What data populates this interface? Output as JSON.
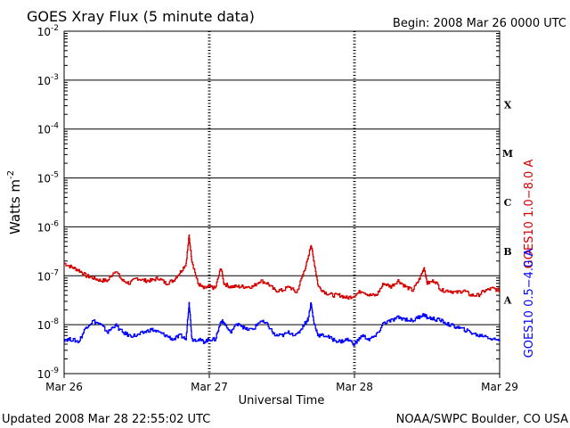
{
  "header": {
    "title": "GOES Xray Flux (5 minute data)",
    "begin_label": "Begin:  2008 Mar 26 0000 UTC"
  },
  "footer": {
    "updated": "Updated 2008 Mar 28 22:55:02 UTC",
    "credit": "NOAA/SWPC Boulder, CO USA"
  },
  "chart_data": {
    "type": "line",
    "title": "GOES Xray Flux (5 minute data)",
    "xlabel": "Universal Time",
    "ylabel_main": "Watts m",
    "ylabel_exp": "-2",
    "y_scale": "log",
    "ylim": [
      1e-09,
      0.01
    ],
    "xlim_days": [
      0,
      3
    ],
    "x_ticks": [
      "Mar 26",
      "Mar 27",
      "Mar 28",
      "Mar 29"
    ],
    "y_ticks": [
      {
        "base": "10",
        "exp": "-2",
        "value": 0.01
      },
      {
        "base": "10",
        "exp": "-3",
        "value": 0.001
      },
      {
        "base": "10",
        "exp": "-4",
        "value": 0.0001
      },
      {
        "base": "10",
        "exp": "-5",
        "value": 1e-05
      },
      {
        "base": "10",
        "exp": "-6",
        "value": 1e-06
      },
      {
        "base": "10",
        "exp": "-7",
        "value": 1e-07
      },
      {
        "base": "10",
        "exp": "-8",
        "value": 1e-08
      },
      {
        "base": "10",
        "exp": "-9",
        "value": 1e-09
      }
    ],
    "flare_classes": [
      {
        "label": "X",
        "value": 0.000316
      },
      {
        "label": "M",
        "value": 3.16e-05
      },
      {
        "label": "C",
        "value": 3.16e-06
      },
      {
        "label": "B",
        "value": 3.16e-07
      },
      {
        "label": "A",
        "value": 3.16e-08
      }
    ],
    "grid": "horizontal lines at each decade, dashed vertical lines at day boundaries",
    "series": [
      {
        "name": "GOES10 1.0−8.0 A",
        "color": "#d40000",
        "x": [
          0.0,
          0.05,
          0.1,
          0.15,
          0.2,
          0.25,
          0.3,
          0.35,
          0.4,
          0.45,
          0.5,
          0.55,
          0.6,
          0.65,
          0.7,
          0.75,
          0.8,
          0.84,
          0.86,
          0.88,
          0.92,
          0.96,
          1.0,
          1.04,
          1.08,
          1.1,
          1.14,
          1.2,
          1.25,
          1.3,
          1.35,
          1.4,
          1.45,
          1.5,
          1.55,
          1.6,
          1.65,
          1.68,
          1.7,
          1.72,
          1.75,
          1.8,
          1.85,
          1.9,
          1.95,
          2.0,
          2.05,
          2.1,
          2.15,
          2.2,
          2.25,
          2.3,
          2.35,
          2.4,
          2.45,
          2.48,
          2.5,
          2.55,
          2.6,
          2.65,
          2.7,
          2.75,
          2.8,
          2.85,
          2.9,
          2.95,
          3.0
        ],
        "y": [
          1.8e-07,
          1.5e-07,
          1.3e-07,
          1e-07,
          9e-08,
          8e-08,
          8e-08,
          1.3e-07,
          8e-08,
          7e-08,
          9e-08,
          8e-08,
          8e-08,
          9e-08,
          7e-08,
          8e-08,
          1.2e-07,
          1.8e-07,
          6.5e-07,
          2e-07,
          7e-08,
          5.5e-08,
          6e-08,
          5.5e-08,
          1.5e-07,
          7e-08,
          6e-08,
          6e-08,
          6e-08,
          6e-08,
          8e-08,
          7e-08,
          5e-08,
          5e-08,
          6e-08,
          4.5e-08,
          1.2e-07,
          2.2e-07,
          4.5e-07,
          2e-07,
          6e-08,
          4.5e-08,
          4e-08,
          4e-08,
          3.5e-08,
          4e-08,
          5e-08,
          4e-08,
          4e-08,
          7e-08,
          6e-08,
          8e-08,
          6e-08,
          5e-08,
          9e-08,
          1.5e-07,
          7e-08,
          8e-08,
          5e-08,
          5e-08,
          4.5e-08,
          5e-08,
          4e-08,
          4e-08,
          5e-08,
          5.5e-08,
          5e-08
        ]
      },
      {
        "name": "GOES10 0.5−4.0 A",
        "color": "#0000ff",
        "x": [
          0.0,
          0.05,
          0.1,
          0.15,
          0.2,
          0.25,
          0.3,
          0.35,
          0.4,
          0.45,
          0.5,
          0.55,
          0.6,
          0.65,
          0.7,
          0.75,
          0.8,
          0.84,
          0.86,
          0.88,
          0.92,
          0.96,
          1.0,
          1.04,
          1.08,
          1.1,
          1.14,
          1.2,
          1.25,
          1.3,
          1.35,
          1.4,
          1.45,
          1.5,
          1.55,
          1.6,
          1.65,
          1.68,
          1.7,
          1.72,
          1.75,
          1.8,
          1.85,
          1.9,
          1.95,
          2.0,
          2.05,
          2.1,
          2.15,
          2.2,
          2.25,
          2.3,
          2.35,
          2.4,
          2.45,
          2.48,
          2.5,
          2.55,
          2.6,
          2.65,
          2.7,
          2.75,
          2.8,
          2.85,
          2.9,
          2.95,
          3.0
        ],
        "y": [
          5e-09,
          5e-09,
          4.5e-09,
          9e-09,
          1.2e-08,
          1e-08,
          7e-09,
          1e-08,
          7e-09,
          6e-09,
          6e-09,
          7e-09,
          8e-09,
          7e-09,
          6e-09,
          5e-09,
          6e-09,
          5e-09,
          3e-08,
          5e-09,
          5e-09,
          4.5e-09,
          5e-09,
          5e-09,
          1.2e-08,
          1.1e-08,
          7e-09,
          1.1e-08,
          8e-09,
          8e-09,
          1.2e-08,
          1e-08,
          6e-09,
          6e-09,
          7e-09,
          6e-09,
          1e-08,
          1.3e-08,
          2.8e-08,
          1.1e-08,
          6e-09,
          6e-09,
          5e-09,
          4.5e-09,
          5e-09,
          4e-09,
          6e-09,
          5e-09,
          6e-09,
          1.1e-08,
          1.2e-08,
          1.4e-08,
          1.3e-08,
          1.2e-08,
          1.5e-08,
          1.6e-08,
          1.4e-08,
          1.3e-08,
          1.2e-08,
          1e-08,
          9e-09,
          8e-09,
          7e-09,
          6e-09,
          6e-09,
          5e-09,
          5e-09
        ]
      }
    ]
  }
}
